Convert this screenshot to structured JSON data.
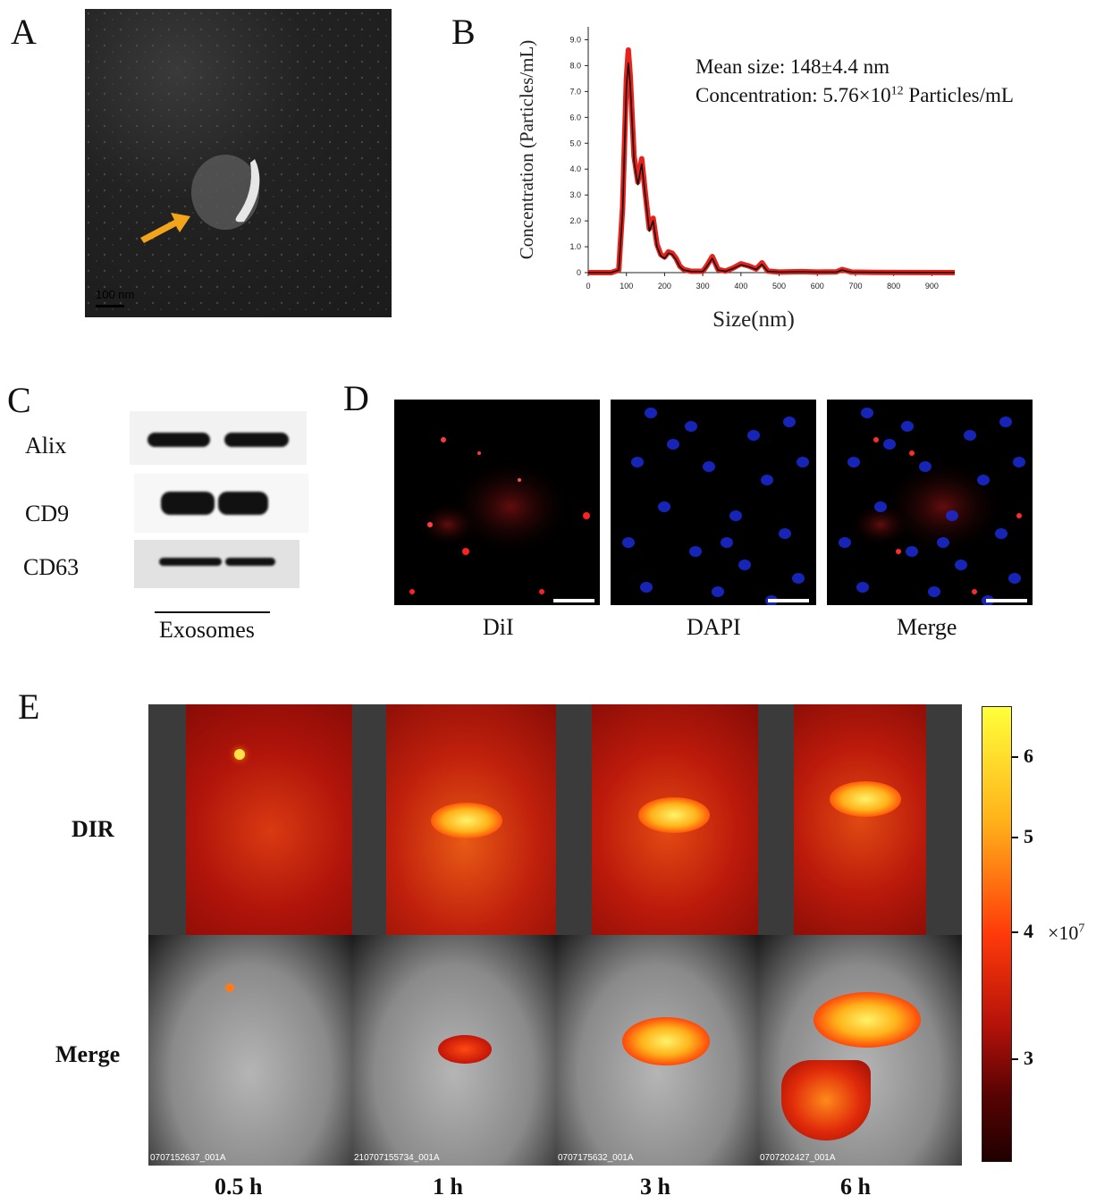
{
  "panels": {
    "A": {
      "letter": "A",
      "scale_label": "100 nm"
    },
    "B": {
      "letter": "B",
      "annotation_line1": "Mean size: 148±4.4 nm",
      "annotation_line2_prefix": "Concentration: 5.76×10",
      "annotation_line2_exp": "12",
      "annotation_line2_suffix": " Particles/mL",
      "chart_data": {
        "type": "line",
        "xlabel": "Size(nm)",
        "ylabel": "Concentration (Particles/mL)",
        "xlim": [
          0,
          960
        ],
        "ylim": [
          0,
          9.5
        ],
        "xticks": [
          "0",
          "100",
          "200",
          "300",
          "400",
          "500",
          "600",
          "700",
          "800",
          "900"
        ],
        "yticks": [
          "0",
          "1.0",
          "2.0",
          "3.0",
          "4.0",
          "5.0",
          "6.0",
          "7.0",
          "8.0",
          "9.0"
        ],
        "series": [
          {
            "color": "#e8221b",
            "x": [
              0,
              60,
              80,
              90,
              100,
              105,
              110,
              120,
              130,
              140,
              150,
              160,
              170,
              180,
              190,
              200,
              210,
              220,
              230,
              240,
              250,
              270,
              300,
              310,
              325,
              340,
              360,
              380,
              400,
              420,
              440,
              455,
              470,
              500,
              560,
              600,
              650,
              665,
              675,
              690,
              750,
              960
            ],
            "y": [
              0,
              0,
              0.1,
              2.5,
              7.5,
              8.6,
              7.6,
              4.5,
              3.5,
              4.4,
              3.0,
              1.7,
              2.1,
              1.1,
              0.7,
              0.6,
              0.8,
              0.75,
              0.55,
              0.25,
              0.12,
              0.05,
              0.05,
              0.25,
              0.62,
              0.12,
              0.06,
              0.18,
              0.34,
              0.26,
              0.14,
              0.38,
              0.06,
              0.02,
              0.04,
              0.02,
              0.03,
              0.12,
              0.08,
              0.02,
              0.01,
              0
            ]
          },
          {
            "color": "#111111",
            "x": [
              0,
              60,
              80,
              90,
              100,
              105,
              110,
              120,
              130,
              140,
              150,
              160,
              170,
              180,
              190,
              200,
              210,
              220,
              230,
              240,
              250,
              270,
              300,
              310,
              325,
              340,
              360,
              380,
              400,
              420,
              440,
              455,
              470,
              500,
              560,
              600,
              650,
              665,
              675,
              690,
              750,
              960
            ],
            "y": [
              0,
              0,
              0.1,
              2.3,
              7.2,
              8.1,
              7.3,
              4.3,
              3.4,
              4.2,
              2.9,
              1.6,
              2.0,
              1.0,
              0.65,
              0.55,
              0.75,
              0.7,
              0.5,
              0.22,
              0.1,
              0.04,
              0.04,
              0.22,
              0.55,
              0.1,
              0.05,
              0.16,
              0.3,
              0.23,
              0.12,
              0.32,
              0.05,
              0.02,
              0.03,
              0.02,
              0.02,
              0.1,
              0.06,
              0.02,
              0.01,
              0
            ]
          }
        ]
      }
    },
    "C": {
      "letter": "C",
      "markers": [
        "Alix",
        "CD9",
        "CD63"
      ],
      "group_label": "Exosomes"
    },
    "D": {
      "letter": "D",
      "images": [
        {
          "label": "DiI"
        },
        {
          "label": "DAPI"
        },
        {
          "label": "Merge"
        }
      ]
    },
    "E": {
      "letter": "E",
      "rows": [
        "DIR",
        "Merge"
      ],
      "timepoints": [
        "0.5 h",
        "1 h",
        "3 h",
        "6 h"
      ],
      "image_ids": [
        "0707152637_001A",
        "210707155734_001A",
        "0707175632_001A",
        "0707202427_001A"
      ],
      "colorbar": {
        "ticks": [
          "6",
          "5",
          "4",
          "3"
        ],
        "multiplier_base": "×10",
        "multiplier_exp": "7"
      }
    }
  }
}
